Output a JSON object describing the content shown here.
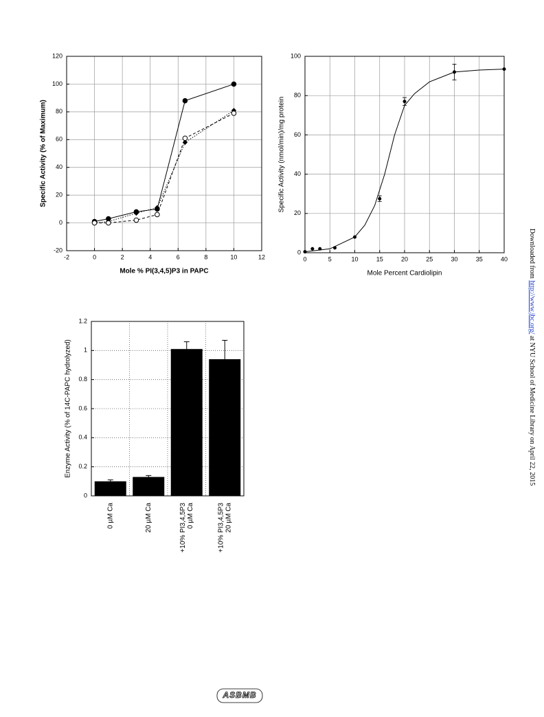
{
  "chart_data": [
    {
      "type": "line",
      "x_label": "Mole % PI(3,4,5)P3 in PAPC",
      "y_label": "Specific Activity (% of Maximum)",
      "x": [
        0,
        1,
        3,
        4.5,
        6.5,
        10
      ],
      "series": [
        {
          "color": "#000000",
          "dash": "solid",
          "marker": "filled",
          "values": [
            1,
            3,
            8,
            10,
            88,
            100
          ]
        },
        {
          "color": "#000000",
          "dash": "dotted",
          "marker": "diamond",
          "values": [
            0,
            1,
            7,
            11,
            58,
            81
          ]
        },
        {
          "color": "#000000",
          "dash": "dashed",
          "marker": "open",
          "values": [
            0,
            0,
            2,
            6,
            61,
            79
          ]
        }
      ],
      "xlim": [
        -2,
        12
      ],
      "xticks": [
        -2,
        0,
        2,
        4,
        6,
        8,
        10,
        12
      ],
      "ylim": [
        -20,
        120
      ],
      "yticks": [
        -20,
        0,
        20,
        40,
        60,
        80,
        100,
        120
      ],
      "grid": true,
      "bold_labels": true
    },
    {
      "type": "scatter",
      "x_label": "Mole Percent Cardiolipin",
      "y_label": "Specific Activity (nmol/min)/mg protein",
      "series": [
        {
          "color": "#000000",
          "mode": "points",
          "x": [
            0,
            1.5,
            3,
            6,
            10,
            15,
            20,
            30,
            40
          ],
          "values": [
            0.5,
            2,
            2,
            2.5,
            8,
            27.5,
            77,
            92,
            93.5
          ],
          "errors": [
            0,
            0,
            0,
            0,
            0,
            1.5,
            2,
            4,
            0
          ]
        },
        {
          "color": "#000000",
          "mode": "line",
          "x": [
            0,
            5,
            10,
            12,
            14,
            16,
            18,
            20,
            22,
            25,
            30,
            35,
            40
          ],
          "values": [
            0.5,
            2,
            8,
            14,
            24,
            40,
            60,
            75,
            81,
            87,
            92,
            93,
            93.5
          ]
        }
      ],
      "xlim": [
        0,
        40
      ],
      "xticks": [
        0,
        5,
        10,
        15,
        20,
        25,
        30,
        35,
        40
      ],
      "ylim": [
        0,
        100
      ],
      "yticks": [
        0,
        20,
        40,
        60,
        80,
        100
      ],
      "grid": true,
      "bold_labels": false
    },
    {
      "type": "bar",
      "y_label": "Enzyme Activity (% of 14C-PAPC hydrolyzed)",
      "categories": [
        [
          "0 µM Ca"
        ],
        [
          "20 µM Ca"
        ],
        [
          "+10% PI3,4,5P3",
          "0 µM Ca"
        ],
        [
          "+10% PI3,4,5P3",
          "20 µM Ca"
        ]
      ],
      "values": [
        0.1,
        0.13,
        1.01,
        0.94
      ],
      "errors": [
        0.01,
        0.01,
        0.05,
        0.13
      ],
      "color": "#000000",
      "ylim": [
        0,
        1.2
      ],
      "yticks": [
        0,
        0.2,
        0.4,
        0.6,
        0.8,
        1,
        1.2
      ],
      "grid": true,
      "grid_style": "dotted",
      "bold_labels": false
    }
  ],
  "side_note": {
    "prefix": "Downloaded from",
    "link": "http://www.jbc.org/",
    "suffix": "at NYU School of Medicine Library on April 22, 2015"
  },
  "footer": {
    "logo": "ASBMB"
  }
}
